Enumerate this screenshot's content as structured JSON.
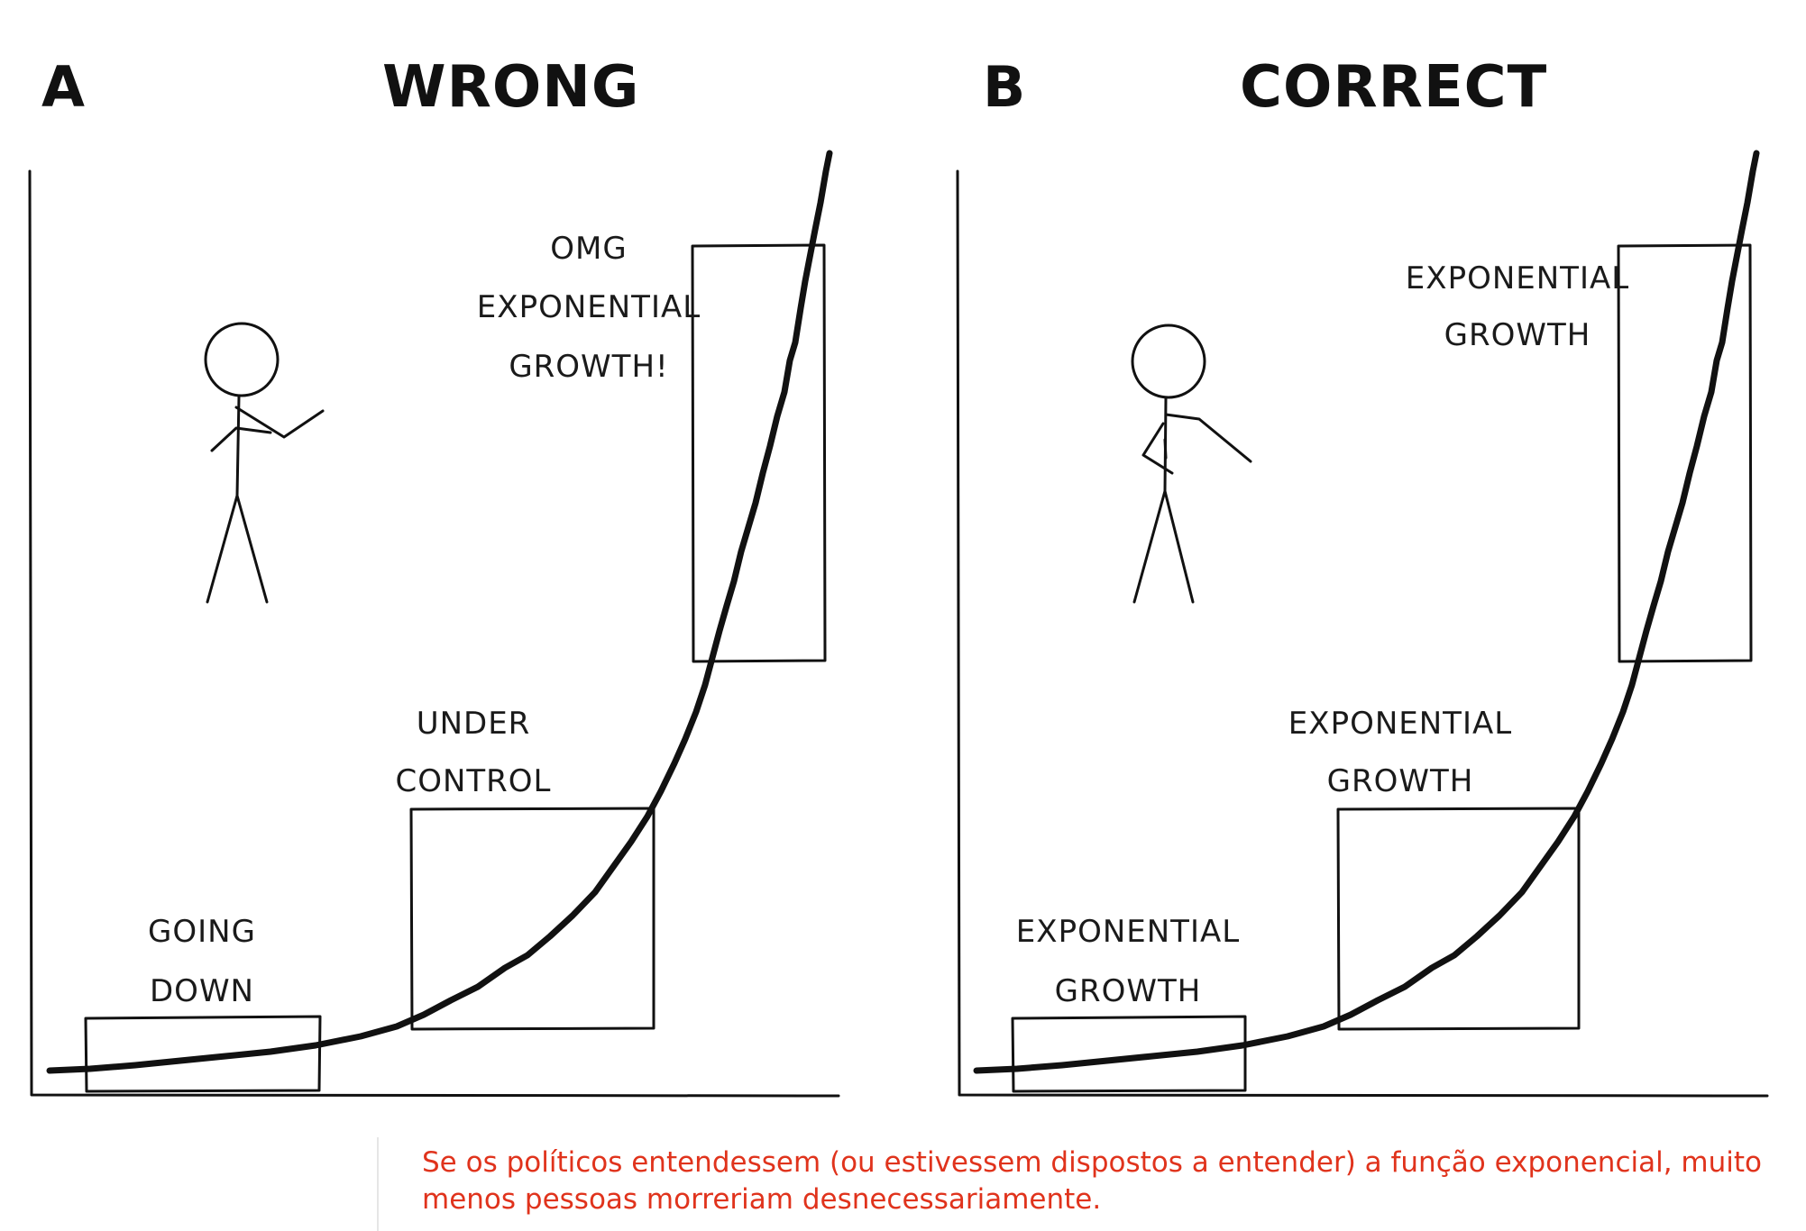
{
  "panels": [
    {
      "letter": "A",
      "title": "WRONG",
      "labels": {
        "top": [
          "OMG",
          "EXPONENTIAL",
          "GROWTH!"
        ],
        "middle": [
          "UNDER",
          "CONTROL"
        ],
        "bottom": [
          "GOING",
          "DOWN"
        ]
      }
    },
    {
      "letter": "B",
      "title": "CORRECT",
      "labels": {
        "top": [
          "EXPONENTIAL",
          "GROWTH"
        ],
        "middle": [
          "EXPONENTIAL",
          "GROWTH"
        ],
        "bottom": [
          "EXPONENTIAL",
          "GROWTH"
        ]
      }
    }
  ],
  "caption": "Se os políticos entendessem (ou estivessem dispostos a entender) a função exponencial, muito menos pessoas morreriam desnecessariamente."
}
